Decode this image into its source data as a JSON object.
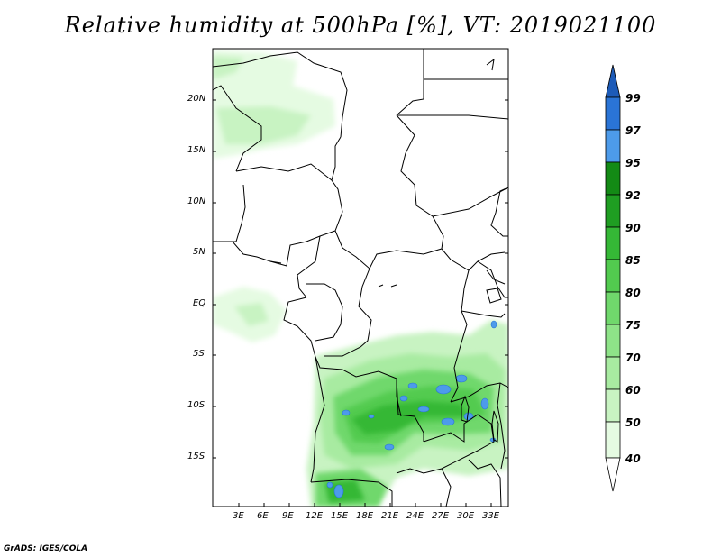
{
  "title": "Relative humidity at 500hPa [%], VT: 2019021100",
  "credit": "GrADS: IGES/COLA",
  "map": {
    "lat_labels": [
      "20N",
      "15N",
      "10N",
      "5N",
      "EQ",
      "5S",
      "10S",
      "15S"
    ],
    "lon_labels": [
      "3E",
      "6E",
      "9E",
      "12E",
      "15E",
      "18E",
      "21E",
      "24E",
      "27E",
      "30E",
      "33E"
    ]
  },
  "colorbar": {
    "levels": [
      "40",
      "50",
      "60",
      "70",
      "75",
      "80",
      "85",
      "90",
      "92",
      "95",
      "97",
      "99"
    ],
    "colors": [
      "#ffffff",
      "#e5fbe2",
      "#c8f3c2",
      "#a8eba1",
      "#8ee388",
      "#70d86c",
      "#52cb4f",
      "#35b836",
      "#1f9e22",
      "#138a15",
      "#4d9bea",
      "#2a74d6",
      "#1d5bb8"
    ]
  },
  "colors": {
    "border": "#000000",
    "humid_green": "#3fc14a",
    "humid_blue": "#4d9bea"
  }
}
